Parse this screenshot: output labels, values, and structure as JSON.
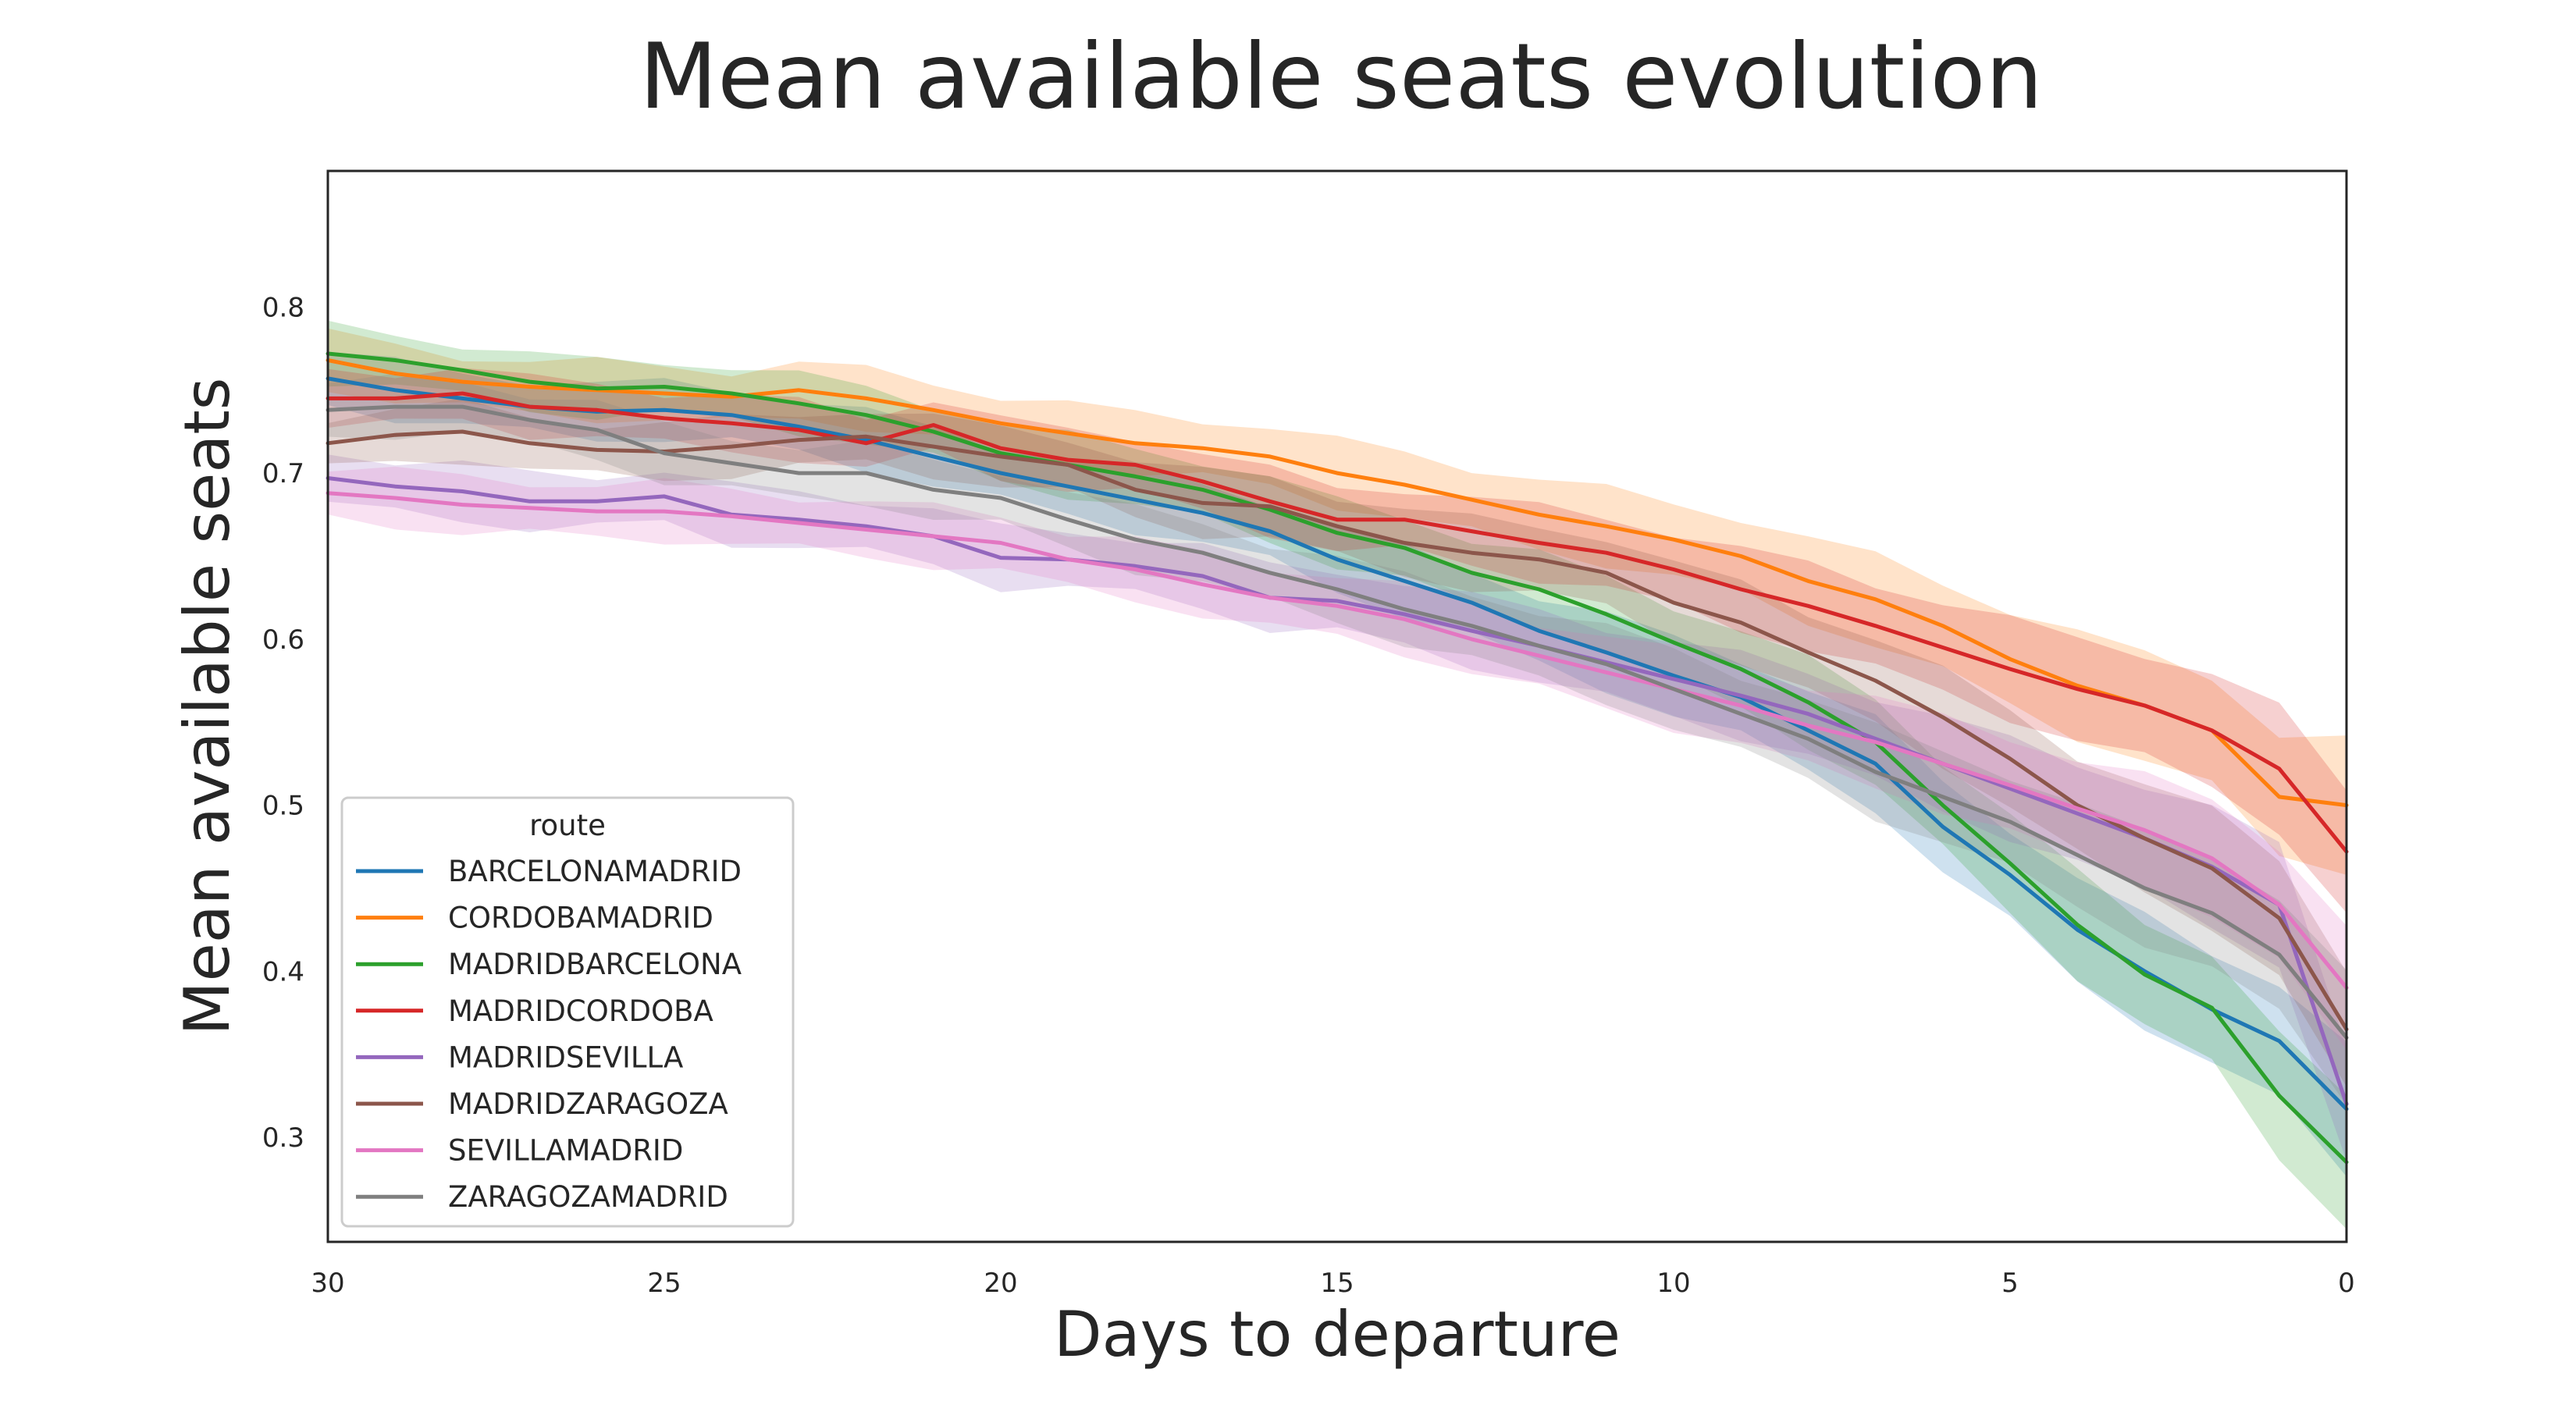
{
  "chart_data": {
    "type": "line",
    "title": "Mean available seats evolution",
    "xlabel": "Days to departure",
    "ylabel": "Mean available seats",
    "xlim": [
      30,
      0
    ],
    "ylim": [
      0.237,
      0.882
    ],
    "x_reversed": true,
    "xticks": [
      30,
      25,
      20,
      15,
      10,
      5,
      0
    ],
    "yticks": [
      0.3,
      0.4,
      0.5,
      0.6,
      0.7,
      0.8
    ],
    "ytick_labels": [
      "0.3",
      "0.4",
      "0.5",
      "0.6",
      "0.7",
      "0.8"
    ],
    "grid": false,
    "confidence_bands": true,
    "legend": {
      "title": "route",
      "position": "lower-left"
    },
    "x": [
      30,
      29,
      28,
      27,
      26,
      25,
      24,
      23,
      22,
      21,
      20,
      19,
      18,
      17,
      16,
      15,
      14,
      13,
      12,
      11,
      10,
      9,
      8,
      7,
      6,
      5,
      4,
      3,
      2,
      1,
      0
    ],
    "series": [
      {
        "name": "BARCELONAMADRID",
        "color": "#1f77b4",
        "values": [
          0.757,
          0.75,
          0.745,
          0.74,
          0.737,
          0.738,
          0.735,
          0.728,
          0.72,
          0.71,
          0.7,
          0.692,
          0.684,
          0.676,
          0.665,
          0.648,
          0.635,
          0.622,
          0.605,
          0.592,
          0.578,
          0.565,
          0.545,
          0.525,
          0.487,
          0.458,
          0.425,
          0.4,
          0.377,
          0.358,
          0.317
        ]
      },
      {
        "name": "CORDOBAMADRID",
        "color": "#ff7f0e",
        "values": [
          0.768,
          0.76,
          0.755,
          0.752,
          0.75,
          0.748,
          0.746,
          0.75,
          0.745,
          0.738,
          0.73,
          0.724,
          0.718,
          0.715,
          0.71,
          0.7,
          0.693,
          0.684,
          0.675,
          0.668,
          0.66,
          0.65,
          0.635,
          0.624,
          0.608,
          0.588,
          0.572,
          0.56,
          0.545,
          0.505,
          0.5
        ]
      },
      {
        "name": "MADRIDBARCELONA",
        "color": "#2ca02c",
        "values": [
          0.772,
          0.768,
          0.762,
          0.755,
          0.751,
          0.752,
          0.748,
          0.742,
          0.735,
          0.725,
          0.712,
          0.705,
          0.698,
          0.69,
          0.678,
          0.664,
          0.655,
          0.64,
          0.63,
          0.615,
          0.598,
          0.582,
          0.562,
          0.538,
          0.5,
          0.465,
          0.428,
          0.398,
          0.378,
          0.325,
          0.285
        ]
      },
      {
        "name": "MADRIDCORDOBA",
        "color": "#d62728",
        "values": [
          0.745,
          0.745,
          0.748,
          0.74,
          0.738,
          0.733,
          0.73,
          0.726,
          0.718,
          0.729,
          0.715,
          0.708,
          0.705,
          0.695,
          0.683,
          0.672,
          0.672,
          0.665,
          0.658,
          0.652,
          0.642,
          0.63,
          0.62,
          0.608,
          0.595,
          0.582,
          0.57,
          0.56,
          0.545,
          0.522,
          0.472
        ]
      },
      {
        "name": "MADRIDSEVILLA",
        "color": "#9467bd",
        "values": [
          0.697,
          0.692,
          0.689,
          0.683,
          0.683,
          0.686,
          0.675,
          0.672,
          0.668,
          0.662,
          0.649,
          0.648,
          0.644,
          0.638,
          0.625,
          0.623,
          0.615,
          0.605,
          0.596,
          0.586,
          0.576,
          0.566,
          0.555,
          0.54,
          0.525,
          0.51,
          0.495,
          0.48,
          0.463,
          0.44,
          0.32
        ]
      },
      {
        "name": "MADRIDZARAGOZA",
        "color": "#8c564b",
        "values": [
          0.718,
          0.723,
          0.725,
          0.718,
          0.714,
          0.713,
          0.716,
          0.72,
          0.722,
          0.716,
          0.71,
          0.705,
          0.69,
          0.682,
          0.68,
          0.668,
          0.658,
          0.652,
          0.648,
          0.64,
          0.622,
          0.61,
          0.592,
          0.575,
          0.553,
          0.528,
          0.5,
          0.48,
          0.462,
          0.432,
          0.365
        ]
      },
      {
        "name": "SEVILLAMADRID",
        "color": "#e377c2",
        "values": [
          0.688,
          0.685,
          0.681,
          0.679,
          0.677,
          0.677,
          0.674,
          0.67,
          0.666,
          0.662,
          0.658,
          0.648,
          0.642,
          0.633,
          0.625,
          0.62,
          0.612,
          0.6,
          0.59,
          0.58,
          0.57,
          0.56,
          0.548,
          0.538,
          0.525,
          0.512,
          0.498,
          0.485,
          0.468,
          0.44,
          0.39
        ]
      },
      {
        "name": "ZARAGOZAMADRID",
        "color": "#7f7f7f",
        "values": [
          0.738,
          0.74,
          0.74,
          0.732,
          0.726,
          0.712,
          0.706,
          0.7,
          0.7,
          0.69,
          0.685,
          0.672,
          0.66,
          0.652,
          0.64,
          0.63,
          0.618,
          0.608,
          0.596,
          0.585,
          0.57,
          0.555,
          0.54,
          0.52,
          0.505,
          0.49,
          0.47,
          0.45,
          0.435,
          0.41,
          0.36
        ]
      }
    ]
  }
}
